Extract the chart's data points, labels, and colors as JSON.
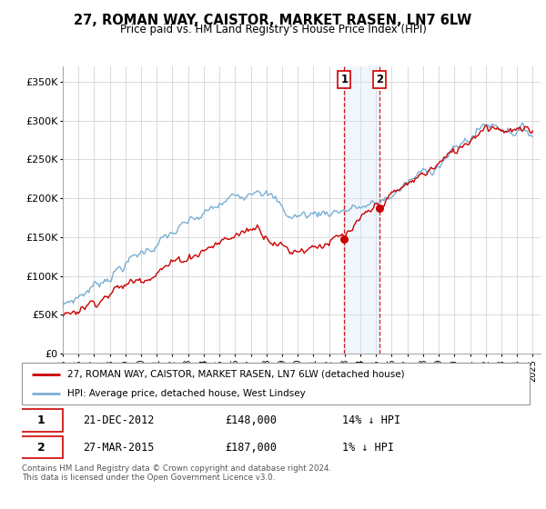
{
  "title": "27, ROMAN WAY, CAISTOR, MARKET RASEN, LN7 6LW",
  "subtitle": "Price paid vs. HM Land Registry's House Price Index (HPI)",
  "legend_line1": "27, ROMAN WAY, CAISTOR, MARKET RASEN, LN7 6LW (detached house)",
  "legend_line2": "HPI: Average price, detached house, West Lindsey",
  "footer": "Contains HM Land Registry data © Crown copyright and database right 2024.\nThis data is licensed under the Open Government Licence v3.0.",
  "purchase1_date": "21-DEC-2012",
  "purchase1_price": 148000,
  "purchase1_label": "14% ↓ HPI",
  "purchase2_date": "27-MAR-2015",
  "purchase2_price": 187000,
  "purchase2_label": "1% ↓ HPI",
  "purchase1_x": 2012.97,
  "purchase2_x": 2015.24,
  "hpi_color": "#7bafd4",
  "price_color": "#cc0000",
  "marker_color": "#cc0000",
  "shade_color": "#d6e8f7",
  "ylim": [
    0,
    370000
  ],
  "xlim": [
    1995.0,
    2025.5
  ],
  "yticks": [
    0,
    50000,
    100000,
    150000,
    200000,
    250000,
    300000,
    350000
  ],
  "xticks": [
    1995,
    1996,
    1997,
    1998,
    1999,
    2000,
    2001,
    2002,
    2003,
    2004,
    2005,
    2006,
    2007,
    2008,
    2009,
    2010,
    2011,
    2012,
    2013,
    2014,
    2015,
    2016,
    2017,
    2018,
    2019,
    2020,
    2021,
    2022,
    2023,
    2024,
    2025
  ]
}
